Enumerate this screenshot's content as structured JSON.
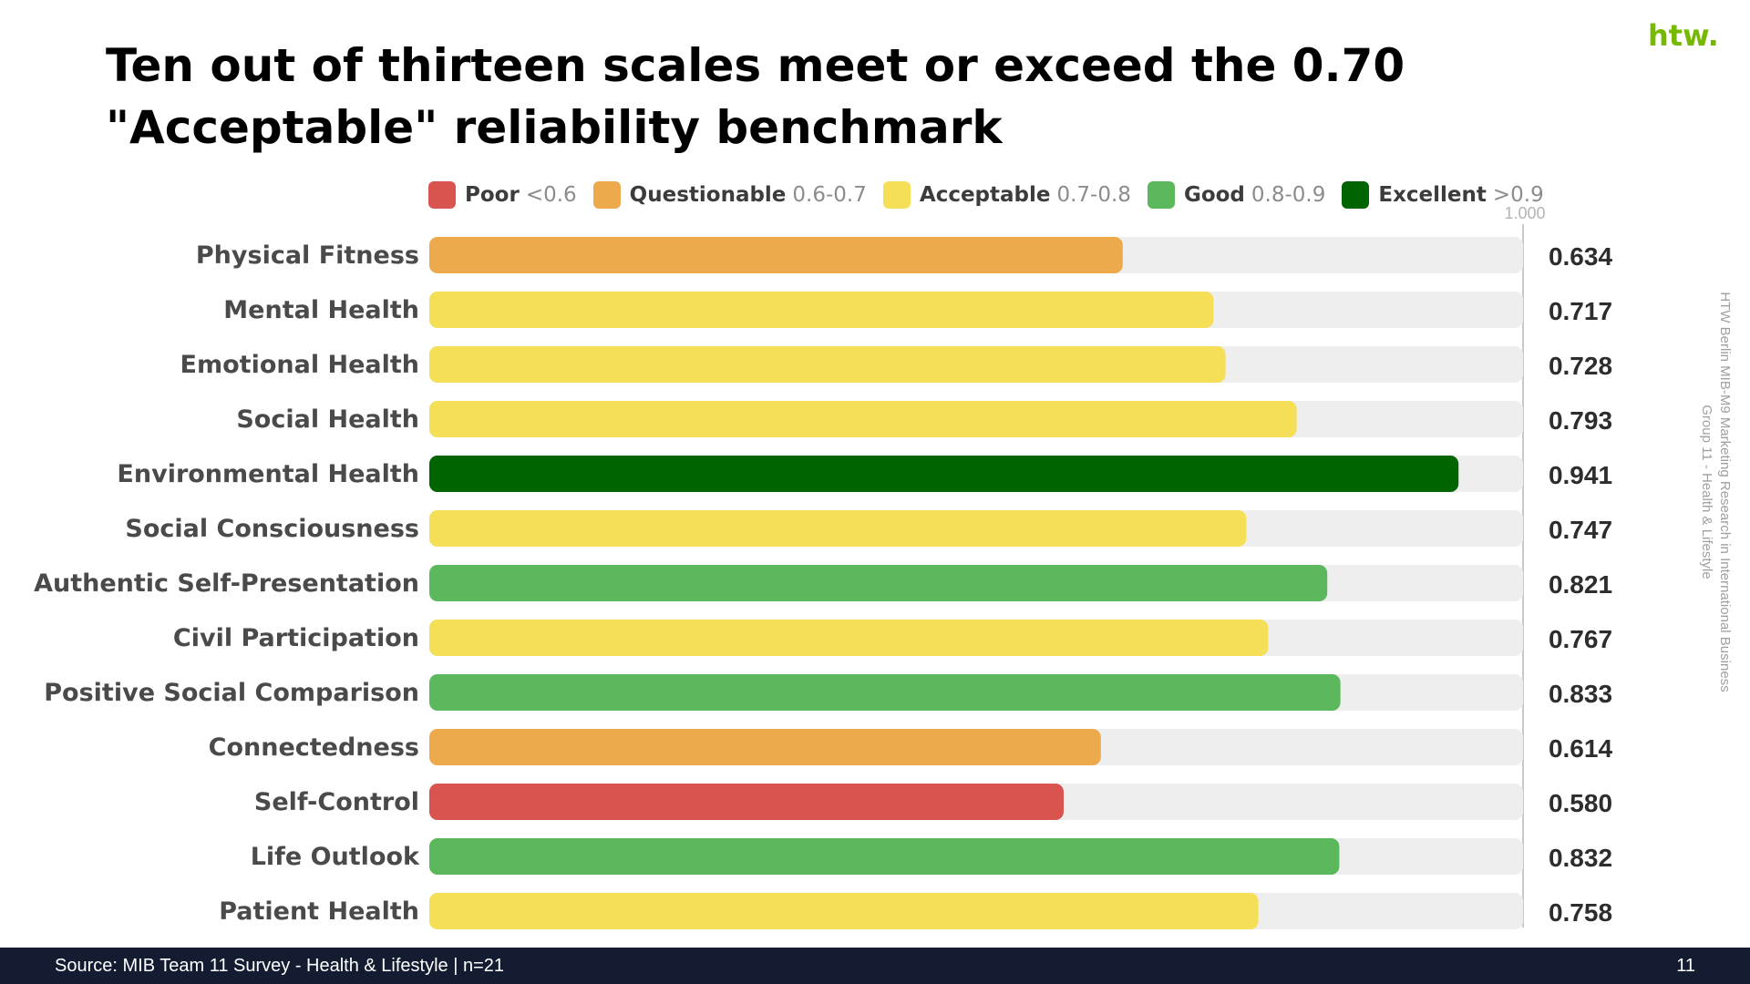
{
  "slide": {
    "title": "Ten out of thirteen scales meet or exceed the 0.70 \"Acceptable\" reliability benchmark",
    "logo_text": "htw.",
    "side_note_line1": "HTW Berlin MIB-M9 Marketing Research in International Business",
    "side_note_line2": "Group 11 - Health & Lifestyle",
    "footer_source": "Source: MIB Team 11 Survey - Health & Lifestyle | n=21",
    "page_number": "11"
  },
  "legend": [
    {
      "name": "Poor",
      "range": "<0.6",
      "color": "#d9534f"
    },
    {
      "name": "Questionable",
      "range": "0.6-0.7",
      "color": "#edaa4c"
    },
    {
      "name": "Acceptable",
      "range": "0.7-0.8",
      "color": "#f5df57"
    },
    {
      "name": "Good",
      "range": "0.8-0.9",
      "color": "#5cb85c"
    },
    {
      "name": "Excellent",
      "range": ">0.9",
      "color": "#006400"
    }
  ],
  "chart_data": {
    "type": "bar",
    "orientation": "horizontal",
    "title": "Ten out of thirteen scales meet or exceed the 0.70 \"Acceptable\" reliability benchmark",
    "xlim": [
      0,
      1
    ],
    "max_label": "1.000",
    "track_color": "#eeeeee",
    "categories": [
      "Physical Fitness",
      "Mental Health",
      "Emotional Health",
      "Social Health",
      "Environmental Health",
      "Social Consciousness",
      "Authentic Self-Presentation",
      "Civil Participation",
      "Positive Social Comparison",
      "Connectedness",
      "Self-Control",
      "Life Outlook",
      "Patient Health"
    ],
    "values": [
      0.634,
      0.717,
      0.728,
      0.793,
      0.941,
      0.747,
      0.821,
      0.767,
      0.833,
      0.614,
      0.58,
      0.832,
      0.758
    ],
    "value_labels": [
      "0.634",
      "0.717",
      "0.728",
      "0.793",
      "0.941",
      "0.747",
      "0.821",
      "0.767",
      "0.833",
      "0.614",
      "0.580",
      "0.832",
      "0.758"
    ],
    "bar_colors": [
      "#edaa4c",
      "#f5df57",
      "#f5df57",
      "#f5df57",
      "#006400",
      "#f5df57",
      "#5cb85c",
      "#f5df57",
      "#5cb85c",
      "#edaa4c",
      "#d9534f",
      "#5cb85c",
      "#f5df57"
    ]
  }
}
